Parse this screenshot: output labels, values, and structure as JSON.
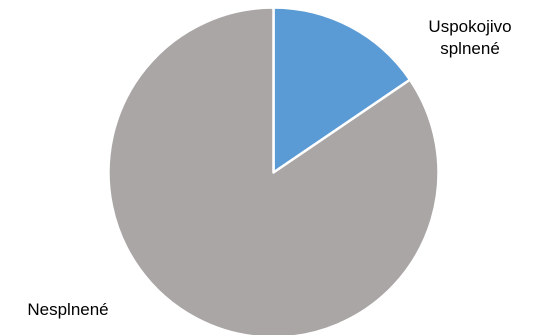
{
  "chart_data": {
    "type": "pie",
    "title": "",
    "categories": [
      "Uspokojivo splnené",
      "Nesplnené"
    ],
    "label_lines": [
      [
        "Uspokojivo",
        "splnené"
      ],
      [
        "Nesplnené"
      ]
    ],
    "values": [
      15.5,
      84.5
    ],
    "colors": [
      "#5b9bd5",
      "#aaa6a5"
    ],
    "start_angle_deg": 0,
    "direction": "clockwise",
    "legend": "none",
    "data_labels": "category names outside slices"
  }
}
